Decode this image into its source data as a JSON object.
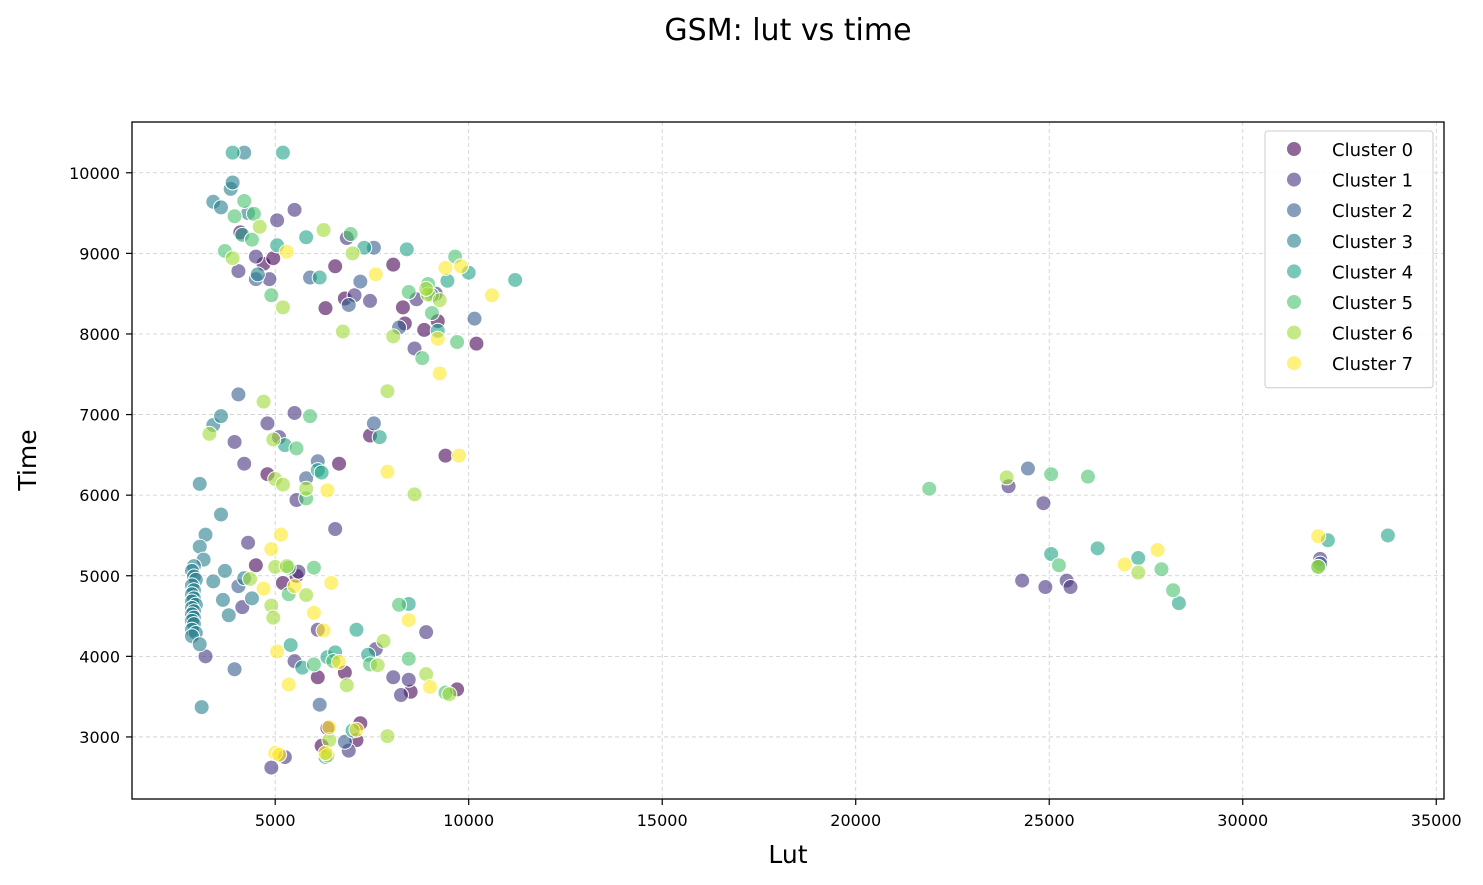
{
  "chart_data": {
    "type": "scatter",
    "title": "GSM: lut vs time",
    "xlabel": "Lut",
    "ylabel": "Time",
    "xlim": [
      1300,
      35200
    ],
    "ylim": [
      2230,
      10630
    ],
    "xticks": [
      5000,
      10000,
      15000,
      20000,
      25000,
      30000,
      35000
    ],
    "yticks": [
      3000,
      4000,
      5000,
      6000,
      7000,
      8000,
      9000,
      10000
    ],
    "grid": true,
    "legend_position": "top-right",
    "series": [
      {
        "name": "Cluster 0",
        "color": "#440154",
        "points": [
          [
            4100,
            9260
          ],
          [
            4700,
            8870
          ],
          [
            4950,
            8940
          ],
          [
            6300,
            8320
          ],
          [
            6550,
            8840
          ],
          [
            6800,
            8440
          ],
          [
            8050,
            8860
          ],
          [
            8300,
            8330
          ],
          [
            8350,
            8130
          ],
          [
            8850,
            8050
          ],
          [
            9200,
            8160
          ],
          [
            10200,
            7880
          ],
          [
            7450,
            6740
          ],
          [
            6650,
            6390
          ],
          [
            4800,
            6260
          ],
          [
            9400,
            6490
          ],
          [
            4500,
            5130
          ],
          [
            5200,
            4910
          ],
          [
            5550,
            5000
          ],
          [
            6100,
            3740
          ],
          [
            6800,
            3800
          ],
          [
            8500,
            3560
          ],
          [
            9700,
            3590
          ],
          [
            6200,
            2890
          ],
          [
            6350,
            3110
          ],
          [
            7200,
            3170
          ],
          [
            7100,
            2960
          ]
        ]
      },
      {
        "name": "Cluster 1",
        "color": "#46327e",
        "points": [
          [
            4050,
            8780
          ],
          [
            4500,
            8960
          ],
          [
            4850,
            8680
          ],
          [
            5050,
            9410
          ],
          [
            5500,
            9540
          ],
          [
            6850,
            9190
          ],
          [
            7050,
            8480
          ],
          [
            7450,
            8410
          ],
          [
            8600,
            7820
          ],
          [
            9150,
            8500
          ],
          [
            8650,
            8430
          ],
          [
            3950,
            6660
          ],
          [
            4200,
            6390
          ],
          [
            4800,
            6890
          ],
          [
            5100,
            6720
          ],
          [
            5500,
            7020
          ],
          [
            5550,
            5940
          ],
          [
            5600,
            5050
          ],
          [
            4300,
            5410
          ],
          [
            4150,
            4610
          ],
          [
            6550,
            5580
          ],
          [
            3200,
            4000
          ],
          [
            5500,
            3940
          ],
          [
            6100,
            4330
          ],
          [
            7600,
            4090
          ],
          [
            8050,
            3740
          ],
          [
            8250,
            3520
          ],
          [
            8450,
            3710
          ],
          [
            8900,
            4300
          ],
          [
            6900,
            2830
          ],
          [
            4900,
            2620
          ],
          [
            5250,
            2750
          ],
          [
            23950,
            6110
          ],
          [
            24850,
            5900
          ],
          [
            24300,
            4940
          ],
          [
            24900,
            4860
          ],
          [
            25450,
            4940
          ],
          [
            25550,
            4860
          ],
          [
            32000,
            5210
          ]
        ]
      },
      {
        "name": "Cluster 2",
        "color": "#365c8d",
        "points": [
          [
            4500,
            8680
          ],
          [
            5900,
            8700
          ],
          [
            6900,
            8360
          ],
          [
            7200,
            8650
          ],
          [
            7550,
            9070
          ],
          [
            8200,
            8080
          ],
          [
            10150,
            8190
          ],
          [
            4050,
            7250
          ],
          [
            7550,
            6890
          ],
          [
            5800,
            6210
          ],
          [
            6100,
            6420
          ],
          [
            3950,
            3840
          ],
          [
            4050,
            4870
          ],
          [
            6150,
            3400
          ],
          [
            6800,
            2940
          ],
          [
            24450,
            6330
          ],
          [
            32000,
            5150
          ]
        ]
      },
      {
        "name": "Cluster 3",
        "color": "#277f8e",
        "points": [
          [
            3400,
            9640
          ],
          [
            3600,
            9570
          ],
          [
            3850,
            9800
          ],
          [
            3900,
            9880
          ],
          [
            4200,
            10250
          ],
          [
            4300,
            9500
          ],
          [
            4550,
            8740
          ],
          [
            3050,
            6140
          ],
          [
            3400,
            6870
          ],
          [
            3600,
            6980
          ],
          [
            3600,
            5760
          ],
          [
            3200,
            5510
          ],
          [
            3050,
            5360
          ],
          [
            3150,
            5200
          ],
          [
            3700,
            5060
          ],
          [
            2900,
            5120
          ],
          [
            2850,
            5060
          ],
          [
            2900,
            4990
          ],
          [
            2950,
            4950
          ],
          [
            2850,
            4880
          ],
          [
            2900,
            4820
          ],
          [
            2850,
            4770
          ],
          [
            2900,
            4720
          ],
          [
            2850,
            4680
          ],
          [
            2950,
            4640
          ],
          [
            2850,
            4600
          ],
          [
            2900,
            4560
          ],
          [
            2850,
            4520
          ],
          [
            2900,
            4480
          ],
          [
            2850,
            4440
          ],
          [
            2900,
            4400
          ],
          [
            2850,
            4330
          ],
          [
            2950,
            4290
          ],
          [
            2850,
            4250
          ],
          [
            3050,
            4150
          ],
          [
            3400,
            4930
          ],
          [
            3650,
            4700
          ],
          [
            3800,
            4510
          ],
          [
            4200,
            4970
          ],
          [
            4400,
            4720
          ],
          [
            3100,
            3370
          ]
        ]
      },
      {
        "name": "Cluster 4",
        "color": "#1fa187",
        "points": [
          [
            3900,
            10250
          ],
          [
            5200,
            10250
          ],
          [
            4150,
            9230
          ],
          [
            5050,
            9100
          ],
          [
            5800,
            9200
          ],
          [
            6150,
            8700
          ],
          [
            7300,
            9070
          ],
          [
            8400,
            9050
          ],
          [
            9200,
            8040
          ],
          [
            9450,
            8660
          ],
          [
            10000,
            8760
          ],
          [
            11200,
            8670
          ],
          [
            7700,
            6720
          ],
          [
            5250,
            6620
          ],
          [
            6100,
            6310
          ],
          [
            6200,
            6280
          ],
          [
            7100,
            4330
          ],
          [
            8450,
            4650
          ],
          [
            5400,
            4140
          ],
          [
            5700,
            3860
          ],
          [
            6350,
            3990
          ],
          [
            6550,
            4050
          ],
          [
            7400,
            4020
          ],
          [
            7000,
            3080
          ],
          [
            6300,
            2750
          ],
          [
            25050,
            5270
          ],
          [
            26250,
            5340
          ],
          [
            27300,
            5220
          ],
          [
            28350,
            4660
          ],
          [
            32200,
            5440
          ],
          [
            33750,
            5500
          ]
        ]
      },
      {
        "name": "Cluster 5",
        "color": "#4ac16d",
        "points": [
          [
            3700,
            9030
          ],
          [
            3950,
            9460
          ],
          [
            4200,
            9650
          ],
          [
            4400,
            9170
          ],
          [
            4450,
            9490
          ],
          [
            4900,
            8480
          ],
          [
            6950,
            9240
          ],
          [
            8450,
            8520
          ],
          [
            8950,
            8620
          ],
          [
            9050,
            8480
          ],
          [
            9650,
            8960
          ],
          [
            9050,
            8260
          ],
          [
            9700,
            7900
          ],
          [
            8800,
            7700
          ],
          [
            5900,
            6980
          ],
          [
            5550,
            6580
          ],
          [
            5800,
            5960
          ],
          [
            5350,
            4770
          ],
          [
            6000,
            5100
          ],
          [
            5350,
            5100
          ],
          [
            6000,
            3900
          ],
          [
            6500,
            3940
          ],
          [
            7450,
            3900
          ],
          [
            8200,
            4640
          ],
          [
            8450,
            3970
          ],
          [
            9400,
            3550
          ],
          [
            21900,
            6080
          ],
          [
            25050,
            6260
          ],
          [
            25250,
            5130
          ],
          [
            26000,
            6230
          ],
          [
            27900,
            5080
          ],
          [
            28200,
            4820
          ],
          [
            31950,
            5110
          ]
        ]
      },
      {
        "name": "Cluster 6",
        "color": "#a0da39",
        "points": [
          [
            3900,
            8940
          ],
          [
            4600,
            9330
          ],
          [
            5200,
            8330
          ],
          [
            6250,
            9290
          ],
          [
            7000,
            9000
          ],
          [
            6750,
            8030
          ],
          [
            8050,
            7970
          ],
          [
            8950,
            8490
          ],
          [
            8900,
            8560
          ],
          [
            9250,
            8420
          ],
          [
            4700,
            7160
          ],
          [
            3300,
            6760
          ],
          [
            4950,
            6690
          ],
          [
            5000,
            6200
          ],
          [
            5200,
            6130
          ],
          [
            5800,
            6080
          ],
          [
            7900,
            7290
          ],
          [
            8600,
            6010
          ],
          [
            4900,
            4630
          ],
          [
            4350,
            4960
          ],
          [
            5000,
            5110
          ],
          [
            5300,
            5120
          ],
          [
            4950,
            4480
          ],
          [
            5800,
            4760
          ],
          [
            6850,
            3640
          ],
          [
            7650,
            3890
          ],
          [
            7800,
            4190
          ],
          [
            8900,
            3780
          ],
          [
            9500,
            3530
          ],
          [
            7900,
            3010
          ],
          [
            6400,
            2960
          ],
          [
            6350,
            2770
          ],
          [
            23900,
            6220
          ],
          [
            27300,
            5040
          ],
          [
            31950,
            5110
          ]
        ]
      },
      {
        "name": "Cluster 7",
        "color": "#fde725",
        "points": [
          [
            5300,
            9020
          ],
          [
            7600,
            8740
          ],
          [
            9400,
            8820
          ],
          [
            9800,
            8840
          ],
          [
            10600,
            8480
          ],
          [
            9200,
            7940
          ],
          [
            9250,
            7510
          ],
          [
            9750,
            6490
          ],
          [
            7900,
            6290
          ],
          [
            6350,
            6060
          ],
          [
            4900,
            5330
          ],
          [
            5150,
            5510
          ],
          [
            4700,
            4840
          ],
          [
            5500,
            4870
          ],
          [
            6450,
            4910
          ],
          [
            6000,
            4540
          ],
          [
            6250,
            4320
          ],
          [
            8450,
            4450
          ],
          [
            6650,
            3930
          ],
          [
            5050,
            4060
          ],
          [
            5350,
            3650
          ],
          [
            9000,
            3620
          ],
          [
            5000,
            2800
          ],
          [
            5100,
            2780
          ],
          [
            6400,
            3120
          ],
          [
            6300,
            2800
          ],
          [
            7100,
            3090
          ],
          [
            26950,
            5140
          ],
          [
            27800,
            5320
          ],
          [
            31950,
            5490
          ]
        ]
      }
    ]
  }
}
